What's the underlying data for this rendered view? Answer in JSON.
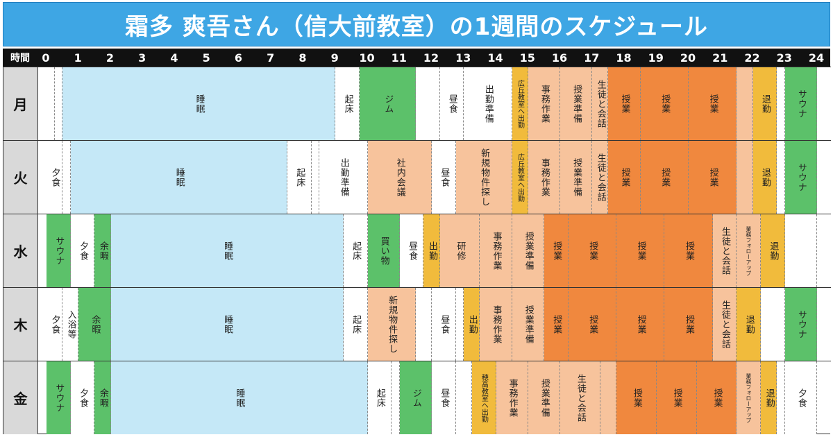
{
  "title": "霜多 爽吾さん（信大前教室）の1週間のスケジュール",
  "time_header": {
    "label": "時間",
    "hours": [
      "0",
      "1",
      "2",
      "3",
      "4",
      "5",
      "6",
      "7",
      "8",
      "9",
      "10",
      "11",
      "12",
      "13",
      "14",
      "15",
      "16",
      "17",
      "18",
      "19",
      "20",
      "21",
      "22",
      "23",
      "24"
    ]
  },
  "colors": {
    "sleep": "#c5e8f7",
    "white": "#ffffff",
    "green": "#5cc16a",
    "peach": "#f7c39c",
    "orange": "#f0883e",
    "yellow": "#f1bb3c"
  },
  "days": [
    {
      "label": "月",
      "blocks": [
        {
          "s": 0,
          "e": 0.25,
          "c": "white",
          "t": ""
        },
        {
          "s": 0.25,
          "e": 0.5,
          "c": "white",
          "t": ""
        },
        {
          "s": 0.5,
          "e": 9,
          "c": "sleep",
          "t": "睡眠"
        },
        {
          "s": 9,
          "e": 9.75,
          "c": "white",
          "t": "起床"
        },
        {
          "s": 9.75,
          "e": 11.5,
          "c": "green",
          "t": "ジム"
        },
        {
          "s": 11.5,
          "e": 12.25,
          "c": "white",
          "t": ""
        },
        {
          "s": 12.25,
          "e": 13,
          "c": "white",
          "t": "昼食"
        },
        {
          "s": 13,
          "e": 14.5,
          "c": "white",
          "t": "出勤準備"
        },
        {
          "s": 14.5,
          "e": 15,
          "c": "yellow",
          "t": "広丘教室へ出勤",
          "sz": "small"
        },
        {
          "s": 15,
          "e": 16,
          "c": "peach",
          "t": "事務作業"
        },
        {
          "s": 16,
          "e": 17,
          "c": "peach",
          "t": "授業準備"
        },
        {
          "s": 17,
          "e": 17.5,
          "c": "peach",
          "t": "生徒と会話"
        },
        {
          "s": 17.5,
          "e": 18.5,
          "c": "orange",
          "t": "授業"
        },
        {
          "s": 18.5,
          "e": 20,
          "c": "orange",
          "t": "授業"
        },
        {
          "s": 20,
          "e": 21.5,
          "c": "orange",
          "t": "授業"
        },
        {
          "s": 21.5,
          "e": 22,
          "c": "peach",
          "t": ""
        },
        {
          "s": 22,
          "e": 22.75,
          "c": "yellow",
          "t": "退勤"
        },
        {
          "s": 22.75,
          "e": 23,
          "c": "white",
          "t": ""
        },
        {
          "s": 23,
          "e": 24,
          "c": "green",
          "t": "サウナ"
        }
      ]
    },
    {
      "label": "火",
      "blocks": [
        {
          "s": 0,
          "e": 0.5,
          "c": "white",
          "t": "夕食"
        },
        {
          "s": 0.5,
          "e": 0.75,
          "c": "white",
          "t": ""
        },
        {
          "s": 0.75,
          "e": 7.5,
          "c": "sleep",
          "t": "睡眠"
        },
        {
          "s": 7.5,
          "e": 8.25,
          "c": "white",
          "t": "起床"
        },
        {
          "s": 8.25,
          "e": 8.5,
          "c": "white",
          "t": ""
        },
        {
          "s": 8.5,
          "e": 10,
          "c": "white",
          "t": "出勤準備"
        },
        {
          "s": 10,
          "e": 12,
          "c": "peach",
          "t": "社内会議"
        },
        {
          "s": 12,
          "e": 12.75,
          "c": "white",
          "t": "昼食"
        },
        {
          "s": 12.75,
          "e": 14.5,
          "c": "peach",
          "t": "新規物件探し"
        },
        {
          "s": 14.5,
          "e": 15,
          "c": "yellow",
          "t": "広丘教室へ出勤",
          "sz": "small"
        },
        {
          "s": 15,
          "e": 16,
          "c": "peach",
          "t": "事務作業"
        },
        {
          "s": 16,
          "e": 17,
          "c": "peach",
          "t": "授業準備"
        },
        {
          "s": 17,
          "e": 17.5,
          "c": "peach",
          "t": "生徒と会話"
        },
        {
          "s": 17.5,
          "e": 18.5,
          "c": "orange",
          "t": "授業"
        },
        {
          "s": 18.5,
          "e": 20,
          "c": "orange",
          "t": "授業"
        },
        {
          "s": 20,
          "e": 21.5,
          "c": "orange",
          "t": "授業"
        },
        {
          "s": 21.5,
          "e": 22,
          "c": "peach",
          "t": ""
        },
        {
          "s": 22,
          "e": 22.75,
          "c": "yellow",
          "t": "退勤"
        },
        {
          "s": 22.75,
          "e": 23,
          "c": "white",
          "t": ""
        },
        {
          "s": 23,
          "e": 24,
          "c": "green",
          "t": "サウナ"
        }
      ]
    },
    {
      "label": "水",
      "blocks": [
        {
          "s": 0,
          "e": 0.75,
          "c": "green",
          "t": "サウナ"
        },
        {
          "s": 0.75,
          "e": 1.5,
          "c": "white",
          "t": "夕食"
        },
        {
          "s": 1.5,
          "e": 2,
          "c": "green",
          "t": "余暇"
        },
        {
          "s": 2,
          "e": 9.25,
          "c": "sleep",
          "t": "睡眠"
        },
        {
          "s": 9.25,
          "e": 10,
          "c": "white",
          "t": "起床"
        },
        {
          "s": 10,
          "e": 11,
          "c": "green",
          "t": "買い物"
        },
        {
          "s": 11,
          "e": 11.75,
          "c": "white",
          "t": "昼食"
        },
        {
          "s": 11.75,
          "e": 12.25,
          "c": "yellow",
          "t": "出勤"
        },
        {
          "s": 12.25,
          "e": 13.5,
          "c": "peach",
          "t": "研修"
        },
        {
          "s": 13.5,
          "e": 14.5,
          "c": "peach",
          "t": "事務作業"
        },
        {
          "s": 14.5,
          "e": 15.5,
          "c": "peach",
          "t": "授業準備"
        },
        {
          "s": 15.5,
          "e": 16.25,
          "c": "orange",
          "t": "授業"
        },
        {
          "s": 16.25,
          "e": 17.75,
          "c": "orange",
          "t": "授業"
        },
        {
          "s": 17.75,
          "e": 19.25,
          "c": "orange",
          "t": "授業"
        },
        {
          "s": 19.25,
          "e": 20.75,
          "c": "orange",
          "t": "授業"
        },
        {
          "s": 20.75,
          "e": 21.5,
          "c": "peach",
          "t": "生徒と会話"
        },
        {
          "s": 21.5,
          "e": 22.25,
          "c": "peach",
          "t": "業務フォローアップ",
          "sz": "tiny"
        },
        {
          "s": 22.25,
          "e": 23,
          "c": "yellow",
          "t": "退勤"
        },
        {
          "s": 23,
          "e": 24,
          "c": "white",
          "t": ""
        }
      ]
    },
    {
      "label": "木",
      "blocks": [
        {
          "s": 0,
          "e": 0.5,
          "c": "white",
          "t": "夕食"
        },
        {
          "s": 0.5,
          "e": 1,
          "c": "white",
          "t": "入浴等"
        },
        {
          "s": 1,
          "e": 2,
          "c": "green",
          "t": "余暇"
        },
        {
          "s": 2,
          "e": 9.25,
          "c": "sleep",
          "t": "睡眠"
        },
        {
          "s": 9.25,
          "e": 10,
          "c": "white",
          "t": "起床"
        },
        {
          "s": 10,
          "e": 11.5,
          "c": "peach",
          "t": "新規物件探し"
        },
        {
          "s": 11.5,
          "e": 12,
          "c": "white",
          "t": ""
        },
        {
          "s": 12,
          "e": 12.75,
          "c": "white",
          "t": "昼食"
        },
        {
          "s": 12.75,
          "e": 13,
          "c": "white",
          "t": ""
        },
        {
          "s": 13,
          "e": 13.5,
          "c": "yellow",
          "t": "出勤"
        },
        {
          "s": 13.5,
          "e": 14.5,
          "c": "peach",
          "t": "事務作業"
        },
        {
          "s": 14.5,
          "e": 15.5,
          "c": "peach",
          "t": "授業準備"
        },
        {
          "s": 15.5,
          "e": 16.25,
          "c": "orange",
          "t": "授業"
        },
        {
          "s": 16.25,
          "e": 17.75,
          "c": "orange",
          "t": "授業"
        },
        {
          "s": 17.75,
          "e": 19.25,
          "c": "orange",
          "t": "授業"
        },
        {
          "s": 19.25,
          "e": 20.75,
          "c": "orange",
          "t": "授業"
        },
        {
          "s": 20.75,
          "e": 21.5,
          "c": "peach",
          "t": "生徒と会話"
        },
        {
          "s": 21.5,
          "e": 22.25,
          "c": "yellow",
          "t": "退勤"
        },
        {
          "s": 22.25,
          "e": 23,
          "c": "white",
          "t": ""
        },
        {
          "s": 23,
          "e": 24,
          "c": "green",
          "t": "サウナ"
        }
      ]
    },
    {
      "label": "金",
      "blocks": [
        {
          "s": 0,
          "e": 0.75,
          "c": "green",
          "t": "サウナ"
        },
        {
          "s": 0.75,
          "e": 1.5,
          "c": "white",
          "t": "夕食"
        },
        {
          "s": 1.5,
          "e": 2,
          "c": "green",
          "t": "余暇"
        },
        {
          "s": 2,
          "e": 10,
          "c": "sleep",
          "t": "睡眠"
        },
        {
          "s": 10,
          "e": 10.75,
          "c": "white",
          "t": "起床"
        },
        {
          "s": 10.75,
          "e": 11,
          "c": "white",
          "t": ""
        },
        {
          "s": 11,
          "e": 12,
          "c": "green",
          "t": "ジム"
        },
        {
          "s": 12,
          "e": 12.75,
          "c": "white",
          "t": "昼食"
        },
        {
          "s": 12.75,
          "e": 13.25,
          "c": "white",
          "t": ""
        },
        {
          "s": 13.25,
          "e": 14,
          "c": "yellow",
          "t": "穂高教室へ出勤",
          "sz": "small"
        },
        {
          "s": 14,
          "e": 15,
          "c": "peach",
          "t": "事務作業"
        },
        {
          "s": 15,
          "e": 16,
          "c": "peach",
          "t": "授業準備"
        },
        {
          "s": 16,
          "e": 17.25,
          "c": "peach",
          "t": "生徒と会話"
        },
        {
          "s": 17.25,
          "e": 17.75,
          "c": "peach",
          "t": ""
        },
        {
          "s": 17.75,
          "e": 19,
          "c": "orange",
          "t": "授業"
        },
        {
          "s": 19,
          "e": 20.25,
          "c": "orange",
          "t": "授業"
        },
        {
          "s": 20.25,
          "e": 21.5,
          "c": "orange",
          "t": "授業"
        },
        {
          "s": 21.5,
          "e": 22.25,
          "c": "peach",
          "t": "業務フォローアップ",
          "sz": "tiny"
        },
        {
          "s": 22.25,
          "e": 22.75,
          "c": "yellow",
          "t": "退勤"
        },
        {
          "s": 22.75,
          "e": 23,
          "c": "white",
          "t": ""
        },
        {
          "s": 23,
          "e": 24,
          "c": "white",
          "t": "夕食"
        }
      ]
    }
  ]
}
